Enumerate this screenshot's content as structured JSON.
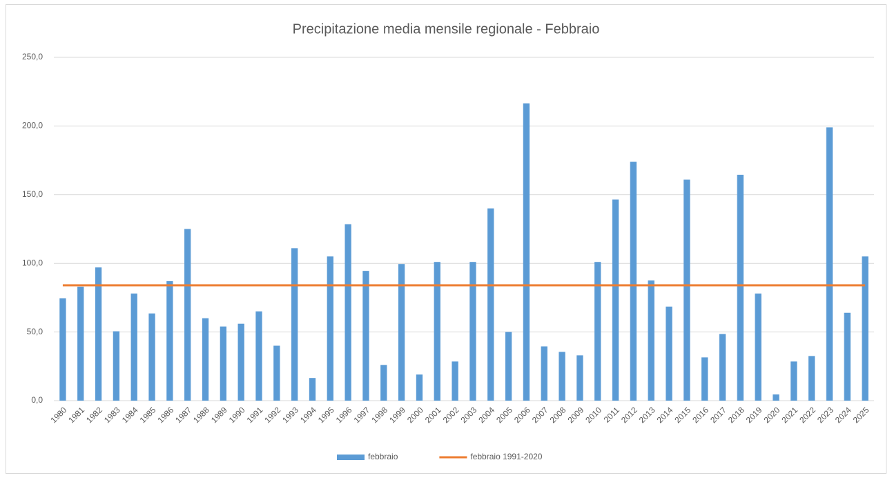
{
  "chart_data": {
    "type": "bar",
    "title": "Precipitazione media mensile regionale - Febbraio",
    "categories": [
      "1980",
      "1981",
      "1982",
      "1983",
      "1984",
      "1985",
      "1986",
      "1987",
      "1988",
      "1989",
      "1990",
      "1991",
      "1992",
      "1993",
      "1994",
      "1995",
      "1996",
      "1997",
      "1998",
      "1999",
      "2000",
      "2001",
      "2002",
      "2003",
      "2004",
      "2005",
      "2006",
      "2007",
      "2008",
      "2009",
      "2010",
      "2011",
      "2012",
      "2013",
      "2014",
      "2015",
      "2016",
      "2017",
      "2018",
      "2019",
      "2020",
      "2021",
      "2022",
      "2023",
      "2024",
      "2025"
    ],
    "series": [
      {
        "name": "febbraio",
        "type": "bar",
        "color": "#5b9bd5",
        "values": [
          74.5,
          83,
          97,
          50.5,
          78,
          63.5,
          87,
          125,
          60,
          54,
          56,
          65,
          40,
          111,
          16.5,
          105,
          128.5,
          94.5,
          26,
          99.5,
          19,
          101,
          28.5,
          101,
          140,
          50,
          216.5,
          39.5,
          35.5,
          33,
          101,
          146.5,
          174,
          87.5,
          68.5,
          161,
          31.5,
          48.5,
          164.5,
          78,
          4.5,
          28.5,
          32.5,
          199,
          64,
          105
        ]
      },
      {
        "name": "febbraio 1991-2020",
        "type": "line",
        "color": "#ed7d31",
        "values": [
          84,
          84,
          84,
          84,
          84,
          84,
          84,
          84,
          84,
          84,
          84,
          84,
          84,
          84,
          84,
          84,
          84,
          84,
          84,
          84,
          84,
          84,
          84,
          84,
          84,
          84,
          84,
          84,
          84,
          84,
          84,
          84,
          84,
          84,
          84,
          84,
          84,
          84,
          84,
          84,
          84,
          84,
          84,
          84,
          84,
          84
        ]
      }
    ],
    "ylim": [
      0,
      250
    ],
    "yticks": [
      {
        "value": 0,
        "label": "0,0"
      },
      {
        "value": 50,
        "label": "50,0"
      },
      {
        "value": 100,
        "label": "100,0"
      },
      {
        "value": 150,
        "label": "150,0"
      },
      {
        "value": 200,
        "label": "200,0"
      },
      {
        "value": 250,
        "label": "250,0"
      }
    ],
    "grid": true,
    "legend": "bottom"
  }
}
